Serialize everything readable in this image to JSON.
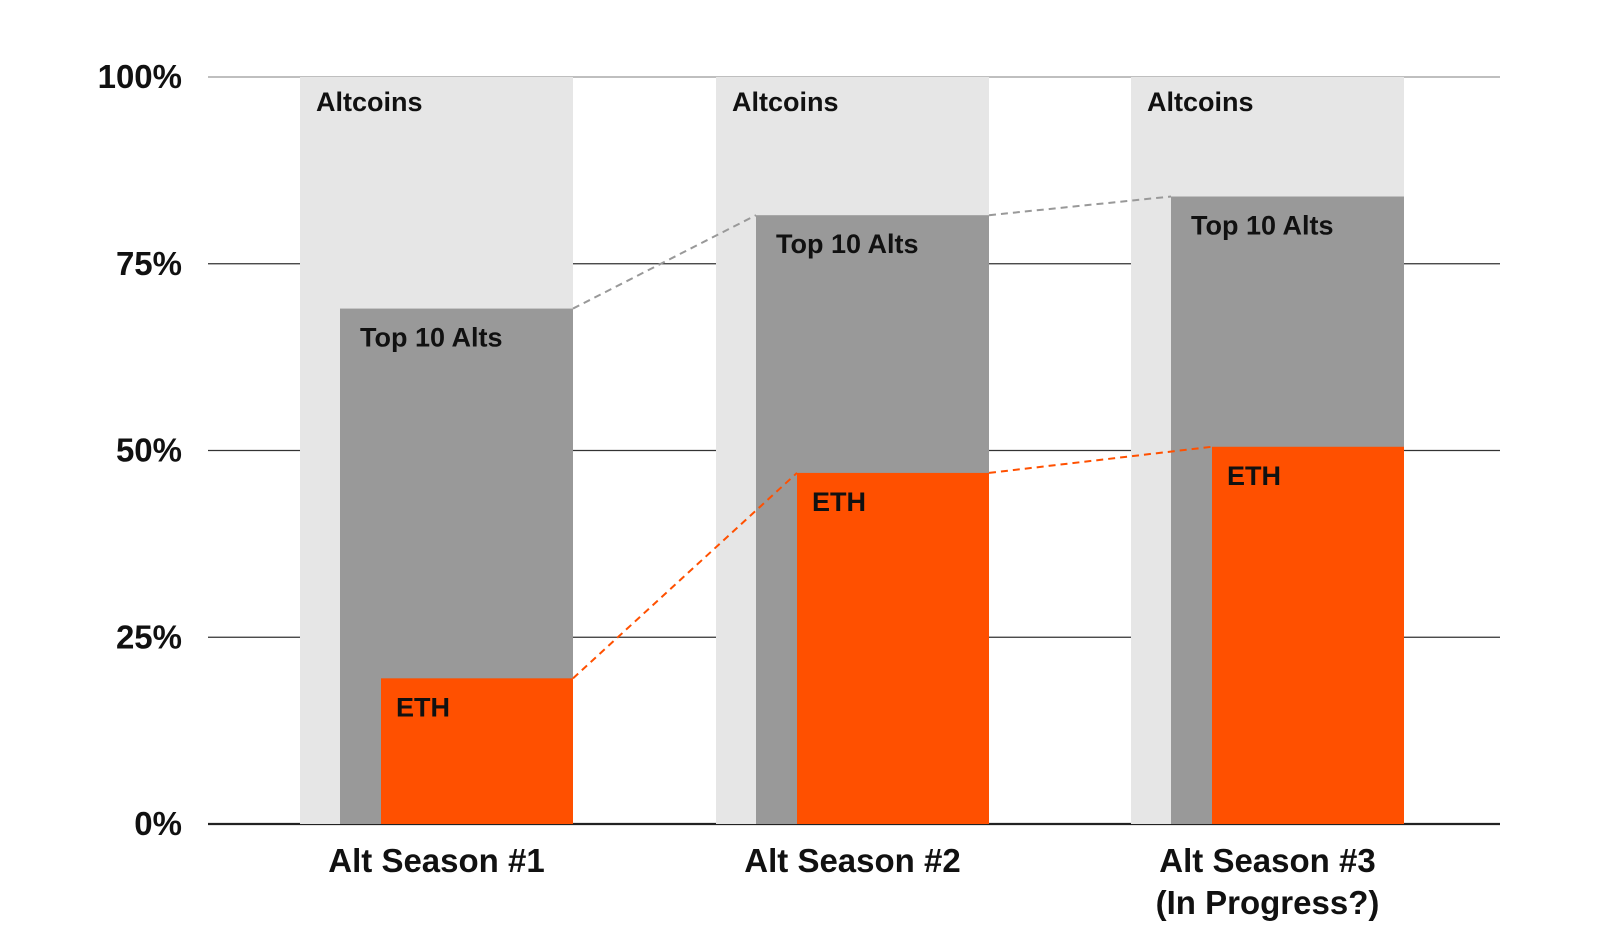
{
  "chart_data": {
    "type": "bar",
    "categories": [
      "Alt Season #1",
      "Alt Season #2",
      "Alt Season #3\n(In Progress?)"
    ],
    "series": [
      {
        "name": "Altcoins",
        "values": [
          100,
          100,
          100
        ],
        "color": "#e6e6e6"
      },
      {
        "name": "Top 10 Alts",
        "values": [
          69,
          81.5,
          84
        ],
        "color": "#999999"
      },
      {
        "name": "ETH",
        "values": [
          19.5,
          47,
          50.5
        ],
        "color": "#ff5000"
      }
    ],
    "connector_colors": {
      "Top 10 Alts": "#999999",
      "ETH": "#ff5000"
    },
    "ylim": [
      0,
      100
    ],
    "yticks": [
      0,
      25,
      50,
      75,
      100
    ],
    "ytick_labels": [
      "0%",
      "25%",
      "50%",
      "75%",
      "100%"
    ],
    "grid": true,
    "title": "",
    "xlabel": "",
    "ylabel": ""
  }
}
